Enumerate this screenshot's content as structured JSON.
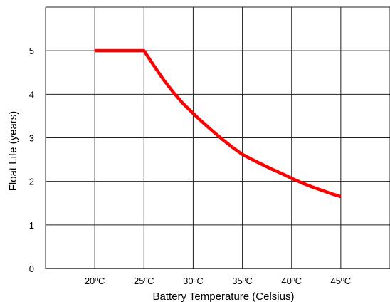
{
  "chart_data": {
    "type": "line",
    "xlabel": "Battery Temperature (Celsius)",
    "ylabel": "Float Life (years)",
    "xlim": [
      15,
      50
    ],
    "ylim": [
      0,
      6
    ],
    "x_ticks": [
      20,
      25,
      30,
      35,
      40,
      45
    ],
    "x_tick_labels": [
      "20ºC",
      "25ºC",
      "30ºC",
      "35ºC",
      "40ºC",
      "45ºC"
    ],
    "y_ticks": [
      0,
      1,
      2,
      3,
      4,
      5
    ],
    "y_tick_labels": [
      "0",
      "1",
      "2",
      "3",
      "4",
      "5"
    ],
    "grid": true,
    "series": [
      {
        "color": "#ff0000",
        "x": [
          20,
          25,
          26,
          27,
          28,
          29,
          30,
          31,
          32,
          33,
          34,
          35,
          36,
          37,
          38,
          39,
          40,
          41,
          42,
          43,
          44,
          45
        ],
        "y": [
          5.0,
          5.0,
          4.66,
          4.33,
          4.04,
          3.78,
          3.56,
          3.35,
          3.15,
          2.96,
          2.78,
          2.62,
          2.5,
          2.39,
          2.28,
          2.18,
          2.07,
          1.97,
          1.88,
          1.8,
          1.72,
          1.65
        ]
      }
    ]
  }
}
